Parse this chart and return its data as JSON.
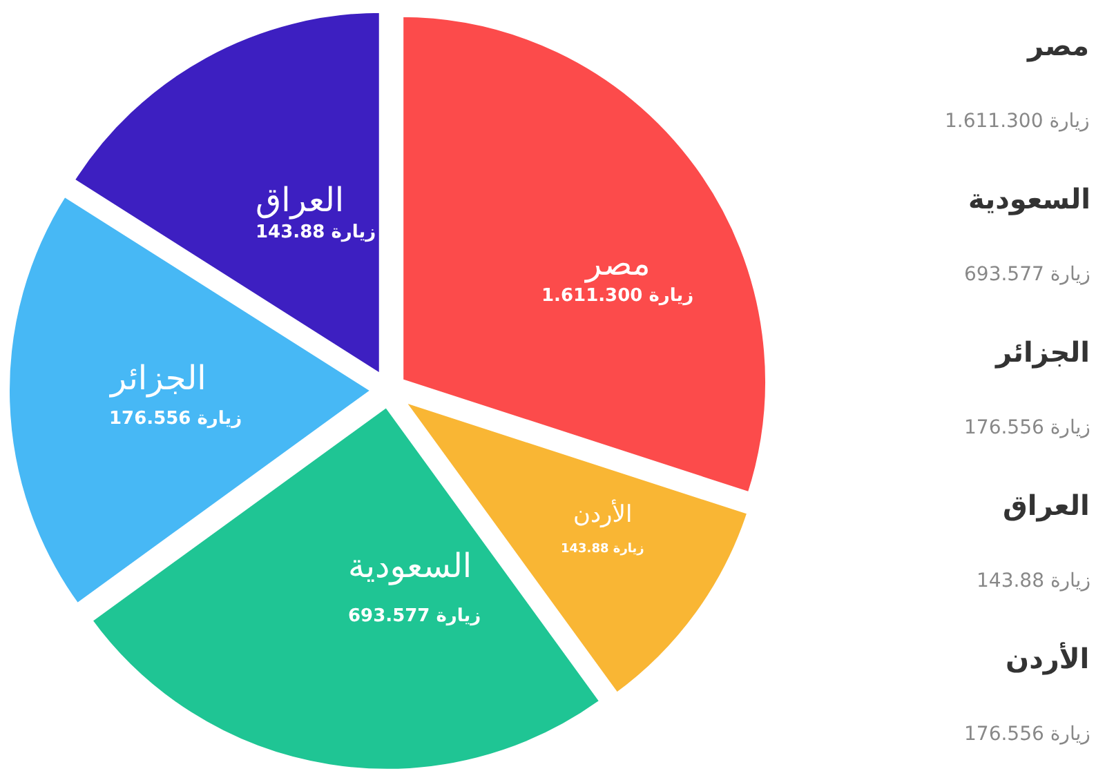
{
  "chart_data": {
    "type": "pie",
    "categories": [
      "مصر",
      "الأردن",
      "السعودية",
      "الجزائر",
      "العراق"
    ],
    "values": [
      30,
      10,
      25,
      19,
      16
    ],
    "colors": [
      "#fc4b4b",
      "#f9b634",
      "#1fc594",
      "#47b8f5",
      "#3d1fc1"
    ],
    "legend": false,
    "annotations": [
      "1.611.300 زيارة",
      "143.88 زيارة",
      "693.577 زيارة",
      "176.556 زيارة",
      "143.88 زيارة",
      "مصر",
      "1.611.300 زيارة",
      "السعودية",
      "693.577 زيارة",
      "الجزائر",
      "176.556 زيارة",
      "العراق",
      "143.88 زيارة",
      "الأردن",
      "176.556 زيارة"
    ]
  }
}
